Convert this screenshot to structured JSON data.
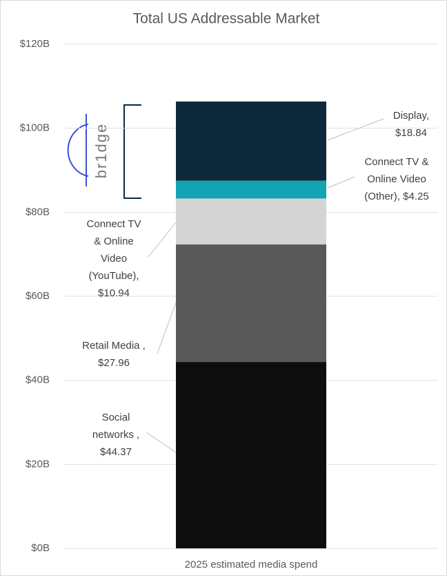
{
  "chart_data": {
    "type": "stacked_bar",
    "title": "Total US Addressable Market",
    "categories": [
      "2025 estimated media spend"
    ],
    "series": [
      {
        "name": "Social networks ,",
        "color": "#0d0d0d",
        "values": [
          44.37
        ],
        "value_labels": [
          "$44.37"
        ]
      },
      {
        "name": "Retail Media ,",
        "color": "#595959",
        "values": [
          27.96
        ],
        "value_labels": [
          "$27.96"
        ]
      },
      {
        "name": "Connect TV & Online Video (YouTube),",
        "color": "#d4d4d4",
        "values": [
          10.94
        ],
        "value_labels": [
          "$10.94"
        ]
      },
      {
        "name": "Connect TV & Online Video (Other),",
        "color": "#12a3b4",
        "values": [
          4.25
        ],
        "value_labels": [
          "$4.25"
        ]
      },
      {
        "name": "Display,",
        "color": "#0c2a3c",
        "values": [
          18.84
        ],
        "value_labels": [
          "$18.84"
        ]
      }
    ],
    "ylim": [
      0,
      120
    ],
    "yticks": [
      {
        "value": 0,
        "label": "$0B"
      },
      {
        "value": 20,
        "label": "$20B"
      },
      {
        "value": 40,
        "label": "$40B"
      },
      {
        "value": 60,
        "label": "$60B"
      },
      {
        "value": 80,
        "label": "$80B"
      },
      {
        "value": 100,
        "label": "$100B"
      },
      {
        "value": 120,
        "label": "$120B"
      }
    ],
    "grid": true,
    "logo": "br1dge"
  }
}
